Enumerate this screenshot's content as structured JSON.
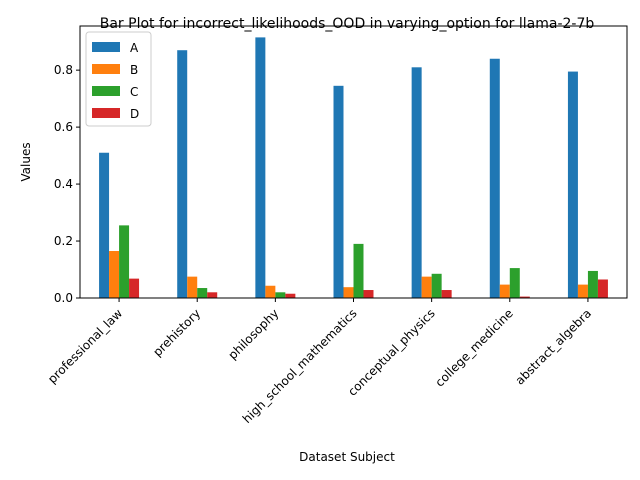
{
  "chart_data": {
    "type": "bar",
    "title": "Bar Plot for incorrect_likelihoods_OOD in varying_option for llama-2-7b",
    "xlabel": "Dataset Subject",
    "ylabel": "Values",
    "ylim": [
      0,
      0.955
    ],
    "yticks": [
      "0.0",
      "0.2",
      "0.4",
      "0.6",
      "0.8"
    ],
    "categories": [
      "professional_law",
      "prehistory",
      "philosophy",
      "high_school_mathematics",
      "conceptual_physics",
      "college_medicine",
      "abstract_algebra"
    ],
    "series": [
      {
        "name": "A",
        "color": "#1f77b4",
        "values": [
          0.51,
          0.87,
          0.915,
          0.745,
          0.81,
          0.84,
          0.795
        ]
      },
      {
        "name": "B",
        "color": "#ff7f0e",
        "values": [
          0.165,
          0.075,
          0.043,
          0.038,
          0.075,
          0.047,
          0.047
        ]
      },
      {
        "name": "C",
        "color": "#2ca02c",
        "values": [
          0.255,
          0.035,
          0.02,
          0.19,
          0.085,
          0.105,
          0.095
        ]
      },
      {
        "name": "D",
        "color": "#d62728",
        "values": [
          0.068,
          0.02,
          0.015,
          0.028,
          0.028,
          0.005,
          0.065
        ]
      }
    ],
    "legend": "top-left",
    "grid": false
  }
}
